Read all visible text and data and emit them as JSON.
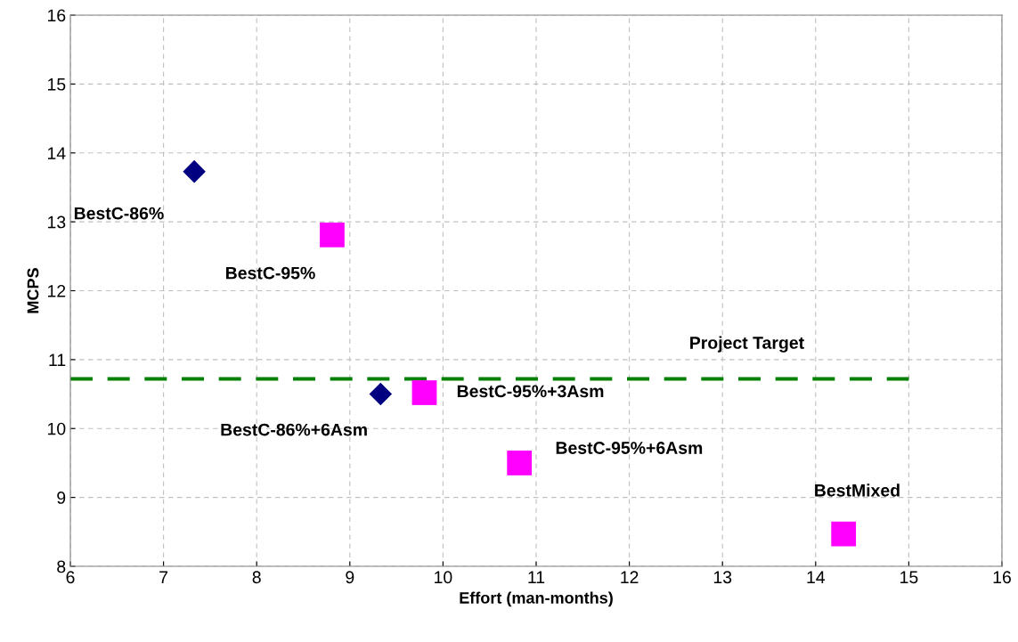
{
  "chart_data": {
    "type": "scatter",
    "xlabel": "Effort (man-months)",
    "ylabel": "MCPS",
    "xlim": [
      6,
      16
    ],
    "xticks": [
      6,
      7,
      8,
      9,
      10,
      11,
      12,
      13,
      14,
      15,
      16
    ],
    "ylim": [
      8,
      16
    ],
    "yticks": [
      8,
      9,
      10,
      11,
      12,
      13,
      14,
      15,
      16
    ],
    "grid": true,
    "legend": false,
    "series": [
      {
        "marker": "diamond",
        "color": "#000080",
        "x": [
          7.33,
          9.33
        ],
        "values": [
          13.73,
          10.5
        ]
      },
      {
        "marker": "square",
        "color": "#ff00ff",
        "x": [
          8.81,
          9.8,
          10.82,
          14.3
        ],
        "values": [
          12.81,
          10.52,
          9.5,
          8.47
        ]
      },
      {
        "type": "line",
        "name": "Project Target",
        "line_style": "dashed",
        "marker": "none",
        "color": "#008000",
        "x": [
          6,
          15
        ],
        "values": [
          10.72,
          10.72
        ]
      }
    ],
    "annotations": [
      {
        "text": "BestC-86%",
        "x": 7.33,
        "y": 13.73
      },
      {
        "text": "BestC-95%",
        "x": 8.81,
        "y": 12.81
      },
      {
        "text": "BestC-86%+6Asm",
        "x": 9.33,
        "y": 10.5
      },
      {
        "text": "BestC-95%+3Asm",
        "x": 9.8,
        "y": 10.52
      },
      {
        "text": "BestC-95%+6Asm",
        "x": 10.82,
        "y": 9.5
      },
      {
        "text": "BestMixed",
        "x": 14.3,
        "y": 8.47
      }
    ]
  }
}
